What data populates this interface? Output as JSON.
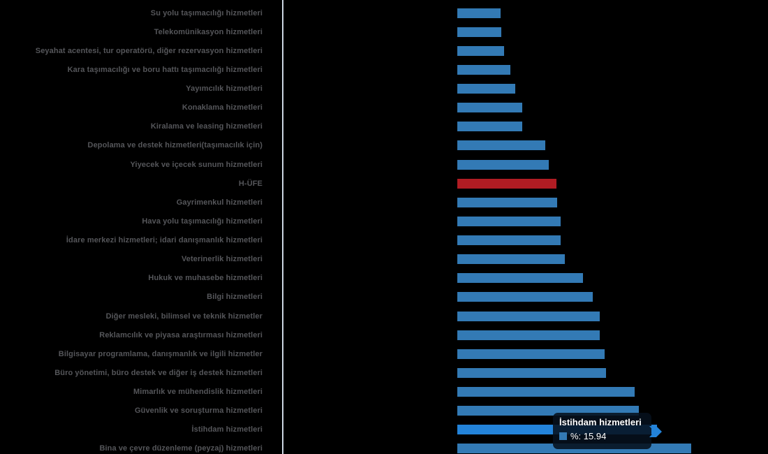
{
  "chart_data": {
    "type": "bar",
    "orientation": "horizontal",
    "title": "",
    "xlabel": "",
    "ylabel": "",
    "series_name": "%",
    "unit": "%",
    "xlim": [
      0,
      20
    ],
    "grid": false,
    "legend": false,
    "categories": [
      "Su yolu taşımacılığı hizmetleri",
      "Telekomünikasyon hizmetleri",
      "Seyahat acentesi, tur operatörü, diğer rezervasyon hizmetleri",
      "Kara taşımacılığı ve boru hattı taşımacılığı hizmetleri",
      "Yayımcılık hizmetleri",
      "Konaklama hizmetleri",
      "Kiralama ve leasing hizmetleri",
      "Depolama ve destek hizmetleri(taşımacılık için)",
      "Yiyecek ve içecek sunum hizmetleri",
      "H-ÜFE",
      "Gayrimenkul hizmetleri",
      "Hava yolu taşımacılığı hizmetleri",
      "İdare merkezi hizmetleri; idari danışmanlık hizmetleri",
      "Veterinerlik hizmetleri",
      "Hukuk ve muhasebe hizmetleri",
      "Bilgi hizmetleri",
      "Diğer mesleki, bilimsel ve teknik hizmetler",
      "Reklamcılık ve piyasa araştırması hizmetleri",
      "Bilgisayar programlama, danışmanlık ve ilgili hizmetler",
      "Büro yönetimi, büro destek ve diğer iş destek hizmetleri",
      "Mimarlık ve mühendislik hizmetleri",
      "Güvenlik ve soruşturma hizmetleri",
      "İstihdam hizmetleri",
      "Bina ve çevre düzenleme (peyzaj) hizmetleri"
    ],
    "values": [
      3.44,
      3.5,
      3.75,
      4.24,
      4.64,
      5.17,
      5.17,
      7.01,
      7.3,
      7.9,
      7.95,
      8.23,
      8.23,
      8.6,
      10.03,
      10.83,
      11.39,
      11.39,
      11.74,
      11.87,
      14.18,
      14.48,
      15.94,
      18.7
    ],
    "colors": {
      "bar": "#337ab5",
      "highlight_bar": "#2383d9",
      "hufe_bar": "#b01c23",
      "axis": "#ccd6e2",
      "label": "#55565a",
      "background": "#000000"
    },
    "emphasis": {
      "hufe_index": 9,
      "hover_index": 22
    }
  },
  "tooltip": {
    "title": "İstihdam hizmetleri",
    "value_text": "%: 15.94",
    "value": 15.94,
    "swatch_color": "#337ab5",
    "text_color": "#ffffff"
  }
}
